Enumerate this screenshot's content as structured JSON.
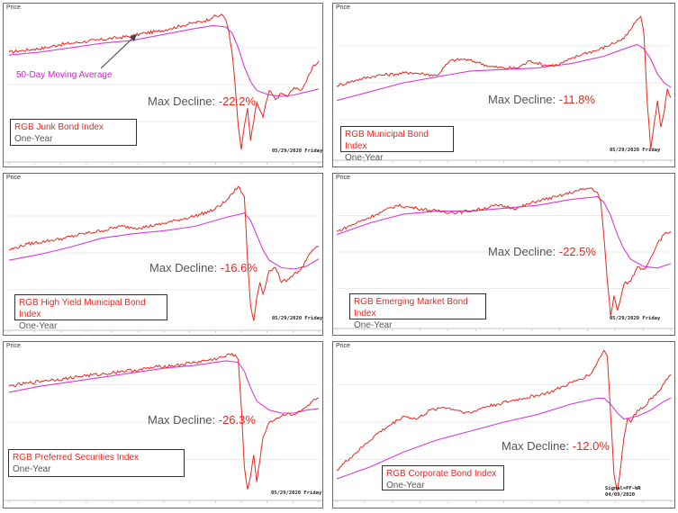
{
  "price_label": "Price",
  "ma_annotation": "50-Day Moving Average",
  "decline_prefix": "Max Decline: ",
  "colors": {
    "price_line": "#e8281e",
    "moving_average": "#d93ad9",
    "grid": "#d8d8d8",
    "text_red": "#e8281e"
  },
  "chart_data": [
    {
      "type": "line",
      "name": "RGB Junk Bond Index",
      "period": "One-Year",
      "max_decline": "-22.2%",
      "date_label": "05/29/2020 Friday",
      "xlabel": "",
      "ylabel": "Price",
      "x_range": [
        "2019-05-29",
        "2020-05-29"
      ],
      "y_range": [
        0,
        100
      ],
      "price": [
        [
          0,
          72
        ],
        [
          4,
          73
        ],
        [
          8,
          74
        ],
        [
          12,
          75
        ],
        [
          16,
          77
        ],
        [
          20,
          78
        ],
        [
          24,
          79
        ],
        [
          28,
          80
        ],
        [
          32,
          81
        ],
        [
          36,
          82
        ],
        [
          40,
          83
        ],
        [
          44,
          85
        ],
        [
          48,
          86
        ],
        [
          52,
          88
        ],
        [
          56,
          90
        ],
        [
          60,
          92
        ],
        [
          63,
          93
        ],
        [
          66,
          96
        ],
        [
          69,
          97
        ],
        [
          70,
          94
        ],
        [
          71,
          86
        ],
        [
          72,
          72
        ],
        [
          73,
          50
        ],
        [
          74,
          22
        ],
        [
          75,
          6
        ],
        [
          76,
          22
        ],
        [
          77,
          34
        ],
        [
          78,
          12
        ],
        [
          79,
          25
        ],
        [
          80,
          38
        ],
        [
          82,
          28
        ],
        [
          84,
          46
        ],
        [
          86,
          40
        ],
        [
          88,
          44
        ],
        [
          90,
          42
        ],
        [
          92,
          48
        ],
        [
          94,
          46
        ],
        [
          96,
          52
        ],
        [
          98,
          62
        ],
        [
          100,
          66
        ]
      ],
      "ma": [
        [
          0,
          70
        ],
        [
          10,
          72
        ],
        [
          20,
          75
        ],
        [
          30,
          78
        ],
        [
          40,
          80
        ],
        [
          50,
          84
        ],
        [
          60,
          88
        ],
        [
          66,
          90
        ],
        [
          70,
          89
        ],
        [
          72,
          85
        ],
        [
          74,
          75
        ],
        [
          76,
          62
        ],
        [
          78,
          52
        ],
        [
          80,
          46
        ],
        [
          84,
          43
        ],
        [
          88,
          42
        ],
        [
          92,
          43
        ],
        [
          96,
          45
        ],
        [
          100,
          47
        ]
      ]
    },
    {
      "type": "line",
      "name": "RGB Municipal Bond Index",
      "period": "One-Year",
      "max_decline": "-11.8%",
      "date_label": "05/29/2020 Friday",
      "xlabel": "",
      "ylabel": "Price",
      "x_range": [
        "2019-05-29",
        "2020-05-29"
      ],
      "y_range": [
        0,
        100
      ],
      "price": [
        [
          0,
          48
        ],
        [
          6,
          52
        ],
        [
          12,
          55
        ],
        [
          18,
          56
        ],
        [
          22,
          57
        ],
        [
          26,
          56
        ],
        [
          30,
          55
        ],
        [
          34,
          65
        ],
        [
          38,
          66
        ],
        [
          42,
          64
        ],
        [
          46,
          61
        ],
        [
          50,
          60
        ],
        [
          54,
          60
        ],
        [
          58,
          65
        ],
        [
          62,
          62
        ],
        [
          66,
          62
        ],
        [
          70,
          66
        ],
        [
          74,
          70
        ],
        [
          78,
          72
        ],
        [
          82,
          76
        ],
        [
          86,
          80
        ],
        [
          88,
          86
        ],
        [
          90,
          93
        ],
        [
          91,
          95
        ],
        [
          92,
          82
        ],
        [
          93,
          35
        ],
        [
          94,
          5
        ],
        [
          95,
          22
        ],
        [
          96,
          38
        ],
        [
          97,
          20
        ],
        [
          98,
          30
        ],
        [
          99,
          46
        ],
        [
          100,
          40
        ]
      ],
      "ma": [
        [
          0,
          38
        ],
        [
          10,
          44
        ],
        [
          20,
          50
        ],
        [
          30,
          54
        ],
        [
          40,
          58
        ],
        [
          50,
          59
        ],
        [
          60,
          60
        ],
        [
          70,
          63
        ],
        [
          80,
          68
        ],
        [
          86,
          73
        ],
        [
          90,
          76
        ],
        [
          92,
          73
        ],
        [
          94,
          66
        ],
        [
          96,
          56
        ],
        [
          98,
          50
        ],
        [
          100,
          47
        ]
      ]
    },
    {
      "type": "line",
      "name": "RGB High Yield Municipal Bond Index",
      "period": "One-Year",
      "max_decline": "-16.6%",
      "date_label": "05/29/2020 Friday",
      "xlabel": "",
      "ylabel": "Price",
      "x_range": [
        "2019-05-29",
        "2020-05-29"
      ],
      "y_range": [
        0,
        100
      ],
      "price": [
        [
          0,
          52
        ],
        [
          6,
          56
        ],
        [
          12,
          58
        ],
        [
          18,
          60
        ],
        [
          24,
          63
        ],
        [
          30,
          65
        ],
        [
          36,
          68
        ],
        [
          42,
          67
        ],
        [
          48,
          69
        ],
        [
          54,
          72
        ],
        [
          60,
          75
        ],
        [
          66,
          79
        ],
        [
          70,
          85
        ],
        [
          72,
          90
        ],
        [
          74,
          95
        ],
        [
          76,
          88
        ],
        [
          77,
          45
        ],
        [
          78,
          14
        ],
        [
          79,
          4
        ],
        [
          80,
          20
        ],
        [
          81,
          30
        ],
        [
          82,
          22
        ],
        [
          84,
          38
        ],
        [
          86,
          40
        ],
        [
          88,
          30
        ],
        [
          90,
          32
        ],
        [
          92,
          36
        ],
        [
          94,
          38
        ],
        [
          96,
          45
        ],
        [
          98,
          52
        ],
        [
          100,
          54
        ]
      ],
      "ma": [
        [
          0,
          45
        ],
        [
          10,
          49
        ],
        [
          20,
          54
        ],
        [
          30,
          60
        ],
        [
          40,
          63
        ],
        [
          50,
          65
        ],
        [
          60,
          68
        ],
        [
          70,
          74
        ],
        [
          76,
          77
        ],
        [
          78,
          72
        ],
        [
          80,
          62
        ],
        [
          82,
          52
        ],
        [
          84,
          45
        ],
        [
          88,
          40
        ],
        [
          92,
          39
        ],
        [
          96,
          41
        ],
        [
          100,
          46
        ]
      ]
    },
    {
      "type": "line",
      "name": "RGB Emerging Market Bond Index",
      "period": "One-Year",
      "max_decline": "-22.5%",
      "date_label": "05/29/2020 Friday",
      "xlabel": "",
      "ylabel": "Price",
      "x_range": [
        "2019-05-29",
        "2020-05-29"
      ],
      "y_range": [
        0,
        100
      ],
      "price": [
        [
          0,
          64
        ],
        [
          6,
          70
        ],
        [
          12,
          76
        ],
        [
          18,
          82
        ],
        [
          24,
          80
        ],
        [
          30,
          78
        ],
        [
          36,
          77
        ],
        [
          42,
          79
        ],
        [
          48,
          82
        ],
        [
          54,
          80
        ],
        [
          60,
          85
        ],
        [
          66,
          88
        ],
        [
          72,
          92
        ],
        [
          76,
          94
        ],
        [
          78,
          91
        ],
        [
          79,
          85
        ],
        [
          80,
          60
        ],
        [
          81,
          30
        ],
        [
          82,
          6
        ],
        [
          83,
          20
        ],
        [
          84,
          10
        ],
        [
          85,
          18
        ],
        [
          86,
          28
        ],
        [
          88,
          30
        ],
        [
          90,
          40
        ],
        [
          92,
          38
        ],
        [
          94,
          46
        ],
        [
          96,
          56
        ],
        [
          98,
          62
        ],
        [
          100,
          64
        ]
      ],
      "ma": [
        [
          0,
          62
        ],
        [
          10,
          70
        ],
        [
          20,
          76
        ],
        [
          30,
          78
        ],
        [
          40,
          78
        ],
        [
          50,
          80
        ],
        [
          60,
          82
        ],
        [
          70,
          86
        ],
        [
          78,
          88
        ],
        [
          80,
          84
        ],
        [
          82,
          75
        ],
        [
          84,
          62
        ],
        [
          86,
          52
        ],
        [
          88,
          45
        ],
        [
          92,
          40
        ],
        [
          96,
          39
        ],
        [
          100,
          42
        ]
      ]
    },
    {
      "type": "line",
      "name": "RGB Preferred Securities Index",
      "period": "One-Year",
      "max_decline": "-26.3%",
      "date_label": "05/29/2020 Friday",
      "xlabel": "",
      "ylabel": "Price",
      "x_range": [
        "2019-05-29",
        "2020-05-29"
      ],
      "y_range": [
        0,
        100
      ],
      "price": [
        [
          0,
          74
        ],
        [
          6,
          76
        ],
        [
          12,
          78
        ],
        [
          18,
          79
        ],
        [
          24,
          81
        ],
        [
          30,
          82
        ],
        [
          36,
          84
        ],
        [
          42,
          85
        ],
        [
          48,
          87
        ],
        [
          54,
          88
        ],
        [
          60,
          90
        ],
        [
          66,
          92
        ],
        [
          70,
          94
        ],
        [
          72,
          96
        ],
        [
          74,
          92
        ],
        [
          75,
          60
        ],
        [
          76,
          20
        ],
        [
          77,
          5
        ],
        [
          78,
          14
        ],
        [
          79,
          28
        ],
        [
          80,
          10
        ],
        [
          81,
          24
        ],
        [
          82,
          40
        ],
        [
          84,
          50
        ],
        [
          86,
          52
        ],
        [
          88,
          54
        ],
        [
          90,
          56
        ],
        [
          92,
          55
        ],
        [
          94,
          57
        ],
        [
          96,
          60
        ],
        [
          98,
          64
        ],
        [
          100,
          66
        ]
      ],
      "ma": [
        [
          0,
          70
        ],
        [
          10,
          74
        ],
        [
          20,
          77
        ],
        [
          30,
          80
        ],
        [
          40,
          83
        ],
        [
          50,
          86
        ],
        [
          60,
          88
        ],
        [
          70,
          91
        ],
        [
          74,
          90
        ],
        [
          76,
          84
        ],
        [
          78,
          73
        ],
        [
          80,
          64
        ],
        [
          84,
          58
        ],
        [
          88,
          56
        ],
        [
          92,
          56
        ],
        [
          96,
          58
        ],
        [
          100,
          59
        ]
      ]
    },
    {
      "type": "line",
      "name": "RGB Corporate Bond Index",
      "period": "One-Year",
      "max_decline": "-12.0%",
      "date_label": "Signal=PF-WR 04/09/2020",
      "xlabel": "",
      "ylabel": "Price",
      "x_range": [
        "2019-05-29",
        "2020-05-29"
      ],
      "y_range": [
        0,
        100
      ],
      "price": [
        [
          0,
          18
        ],
        [
          4,
          26
        ],
        [
          8,
          34
        ],
        [
          12,
          42
        ],
        [
          16,
          48
        ],
        [
          20,
          54
        ],
        [
          24,
          52
        ],
        [
          28,
          58
        ],
        [
          32,
          60
        ],
        [
          36,
          58
        ],
        [
          40,
          56
        ],
        [
          44,
          60
        ],
        [
          48,
          62
        ],
        [
          52,
          64
        ],
        [
          56,
          66
        ],
        [
          60,
          68
        ],
        [
          64,
          70
        ],
        [
          68,
          74
        ],
        [
          72,
          78
        ],
        [
          76,
          82
        ],
        [
          78,
          90
        ],
        [
          80,
          98
        ],
        [
          81,
          94
        ],
        [
          82,
          55
        ],
        [
          83,
          15
        ],
        [
          84,
          4
        ],
        [
          85,
          20
        ],
        [
          86,
          40
        ],
        [
          87,
          52
        ],
        [
          88,
          50
        ],
        [
          90,
          58
        ],
        [
          92,
          60
        ],
        [
          94,
          66
        ],
        [
          96,
          70
        ],
        [
          98,
          76
        ],
        [
          100,
          82
        ]
      ],
      "ma": [
        [
          0,
          12
        ],
        [
          10,
          20
        ],
        [
          20,
          30
        ],
        [
          30,
          38
        ],
        [
          40,
          44
        ],
        [
          50,
          50
        ],
        [
          60,
          55
        ],
        [
          70,
          62
        ],
        [
          78,
          66
        ],
        [
          80,
          66
        ],
        [
          82,
          62
        ],
        [
          84,
          56
        ],
        [
          86,
          52
        ],
        [
          90,
          54
        ],
        [
          94,
          58
        ],
        [
          98,
          64
        ],
        [
          100,
          66
        ]
      ]
    }
  ]
}
